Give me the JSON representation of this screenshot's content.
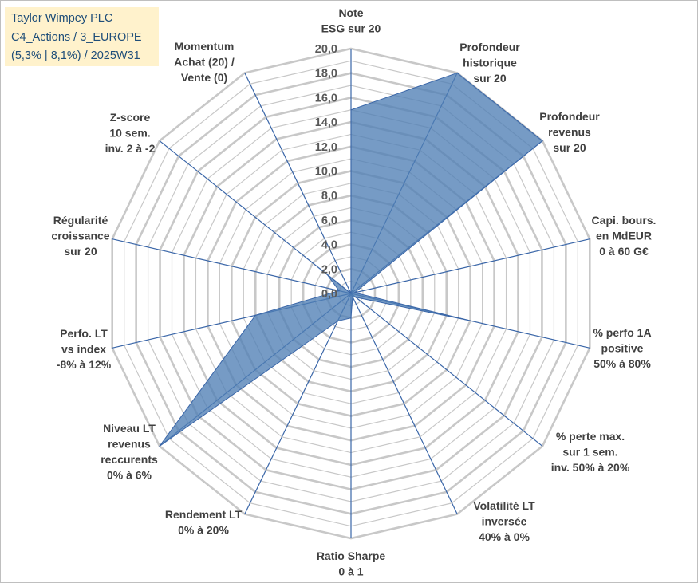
{
  "title_box": {
    "lines": [
      "Taylor Wimpey PLC",
      "C4_Actions / 3_EUROPE",
      "(5,3% | 8,1%) / 2025W31"
    ]
  },
  "colors": {
    "fill": "#4f7fb5",
    "line": "#3a66a8",
    "grid": "#c8c8c8",
    "title_bg": "#fff2cc",
    "title_text": "#1f4e79"
  },
  "chart_data": {
    "type": "radar",
    "rlim": [
      0,
      20
    ],
    "tick_step": 2,
    "major_every": 2,
    "tick_labels": [
      "0,0",
      "2,0",
      "4,0",
      "6,0",
      "8,0",
      "10,0",
      "12,0",
      "14,0",
      "16,0",
      "18,0",
      "20,0"
    ],
    "categories": [
      [
        "Note",
        "ESG sur 20"
      ],
      [
        "Profondeur",
        "historique",
        "sur 20"
      ],
      [
        "Profondeur",
        "revenus",
        "sur 20"
      ],
      [
        "Capi. bours.",
        "en MdEUR",
        "0 à 60 G€"
      ],
      [
        "% perfo 1A",
        "positive",
        "50% à 80%"
      ],
      [
        "% perte max.",
        "sur 1 sem.",
        "inv. 50% à 20%"
      ],
      [
        "Volatilité LT",
        "inversée",
        "40% à 0%"
      ],
      [
        "Ratio Sharpe",
        "0 à 1"
      ],
      [
        "Rendement LT",
        "0% à 20%"
      ],
      [
        "Niveau LT",
        "revenus",
        "reccurents",
        "0% à 6%"
      ],
      [
        "Perfo. LT",
        "vs index",
        "-8% à 12%"
      ],
      [
        "Régularité",
        "croissance",
        "sur 20"
      ],
      [
        "Z-score",
        "10 sem.",
        "inv. 2 à -2"
      ],
      [
        "Momentum",
        "Achat (20) /",
        "Vente (0)"
      ]
    ],
    "series": [
      {
        "values": [
          15.0,
          20.0,
          20.0,
          0.3,
          10.0,
          0.5,
          0.3,
          2.0,
          2.5,
          20.0,
          8.0,
          1.0,
          2.5,
          0.0
        ]
      }
    ]
  }
}
